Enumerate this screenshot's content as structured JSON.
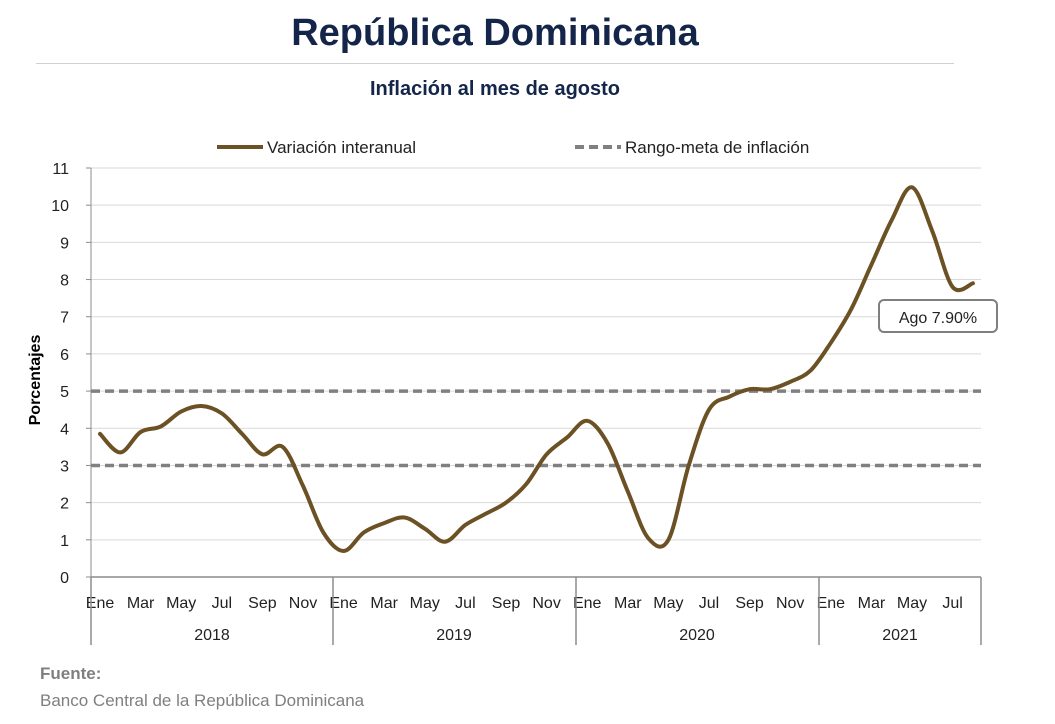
{
  "page": {
    "title": "República Dominicana",
    "subtitle": "Inflación al mes de agosto",
    "source_label": "Fuente:",
    "source_text": "Banco Central de la República Dominicana"
  },
  "colors": {
    "line": "#6b5124",
    "target": "#808080",
    "grid": "#d9d9d9",
    "title": "#14254a",
    "source": "#7f7f7f"
  },
  "chart_data": {
    "type": "line",
    "title": "Inflación al mes de agosto",
    "ylabel": "Porcentajes",
    "xlabel": "",
    "ylim": [
      0,
      11
    ],
    "yticks": [
      0,
      1,
      2,
      3,
      4,
      5,
      6,
      7,
      8,
      9,
      10,
      11
    ],
    "grid": true,
    "legend_position": "top",
    "legend": [
      "Variación interanual",
      "Rango-meta de inflación"
    ],
    "x_tick_labels": [
      "Ene",
      "Mar",
      "May",
      "Jul",
      "Sep",
      "Nov",
      "Ene",
      "Mar",
      "May",
      "Jul",
      "Sep",
      "Nov",
      "Ene",
      "Mar",
      "May",
      "Jul",
      "Sep",
      "Nov",
      "Ene",
      "Mar",
      "May",
      "Jul"
    ],
    "years": [
      "2018",
      "2019",
      "2020",
      "2021"
    ],
    "categories": [
      "Ene 2018",
      "Feb 2018",
      "Mar 2018",
      "Abr 2018",
      "May 2018",
      "Jun 2018",
      "Jul 2018",
      "Ago 2018",
      "Sep 2018",
      "Oct 2018",
      "Nov 2018",
      "Dic 2018",
      "Ene 2019",
      "Feb 2019",
      "Mar 2019",
      "Abr 2019",
      "May 2019",
      "Jun 2019",
      "Jul 2019",
      "Ago 2019",
      "Sep 2019",
      "Oct 2019",
      "Nov 2019",
      "Dic 2019",
      "Ene 2020",
      "Feb 2020",
      "Mar 2020",
      "Abr 2020",
      "May 2020",
      "Jun 2020",
      "Jul 2020",
      "Ago 2020",
      "Sep 2020",
      "Oct 2020",
      "Nov 2020",
      "Dic 2020",
      "Ene 2021",
      "Feb 2021",
      "Mar 2021",
      "Abr 2021",
      "May 2021",
      "Jun 2021",
      "Jul 2021",
      "Ago 2021"
    ],
    "series": [
      {
        "name": "Variación interanual",
        "style": "solid",
        "values": [
          3.85,
          3.35,
          3.9,
          4.05,
          4.45,
          4.6,
          4.4,
          3.85,
          3.3,
          3.5,
          2.45,
          1.2,
          0.7,
          1.2,
          1.45,
          1.6,
          1.3,
          0.95,
          1.4,
          1.7,
          2.0,
          2.5,
          3.3,
          3.75,
          4.2,
          3.6,
          2.3,
          1.05,
          1.0,
          3.0,
          4.5,
          4.85,
          5.05,
          5.05,
          5.25,
          5.55,
          6.3,
          7.2,
          8.4,
          9.6,
          10.48,
          9.3,
          7.8,
          7.9
        ]
      },
      {
        "name": "Rango-meta de inflación",
        "style": "dashed",
        "bands": [
          5,
          3
        ]
      }
    ],
    "annotations": [
      {
        "text": "Ago 7.90%"
      }
    ]
  }
}
